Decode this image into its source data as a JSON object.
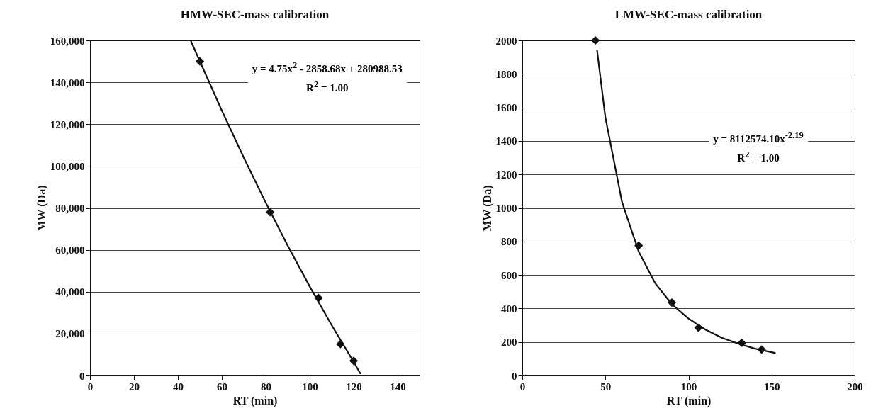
{
  "chart_data": [
    {
      "type": "scatter",
      "title": "HMW-SEC-mass calibration",
      "xlabel": "RT (min)",
      "ylabel": "MW (Da)",
      "xlim": [
        0,
        150
      ],
      "xticks": [
        0,
        20,
        40,
        60,
        80,
        100,
        120,
        140
      ],
      "ylim": [
        0,
        160000
      ],
      "yticks": [
        {
          "value": 0,
          "label": "0"
        },
        {
          "value": 20000,
          "label": "20,000"
        },
        {
          "value": 40000,
          "label": "40,000"
        },
        {
          "value": 60000,
          "label": "60,000"
        },
        {
          "value": 80000,
          "label": "80,000"
        },
        {
          "value": 100000,
          "label": "100,000"
        },
        {
          "value": 120000,
          "label": "120,000"
        },
        {
          "value": 140000,
          "label": "140,000"
        },
        {
          "value": 160000,
          "label": "160,000"
        }
      ],
      "grid": "y",
      "annotations": [
        "y = 4.75x$^{2}$ - 2858.68x + 280988.53",
        "R$^{2}$ = 1.00"
      ],
      "series": [
        {
          "marker": "diamond",
          "color": "#111111",
          "x": [
            50,
            82,
            104,
            114,
            120
          ],
          "values": [
            150000,
            78000,
            37000,
            15000,
            7000
          ]
        },
        {
          "type": "line",
          "marker": "none",
          "line_style": "solid",
          "color": "#111111",
          "x": [
            46,
            50,
            60,
            70,
            80,
            90,
            100,
            110,
            120,
            123
          ],
          "values": [
            159500,
            150000,
            126500,
            104000,
            82500,
            62000,
            42500,
            24000,
            6500,
            1000
          ]
        }
      ]
    },
    {
      "type": "scatter",
      "title": "LMW-SEC-mass calibration",
      "xlabel": "RT (min)",
      "ylabel": "MW (Da)",
      "xlim": [
        0,
        200
      ],
      "xticks": [
        0,
        50,
        100,
        150,
        200
      ],
      "ylim": [
        0,
        2000
      ],
      "yticks": [
        0,
        200,
        400,
        600,
        800,
        1000,
        1200,
        1400,
        1600,
        1800,
        2000
      ],
      "grid": "y",
      "annotations": [
        "y = 8112574.10x$^{-2.19}$",
        "R$^{2}$ = 1.00"
      ],
      "series": [
        {
          "marker": "diamond",
          "color": "#111111",
          "x": [
            44,
            70,
            90,
            106,
            132,
            144
          ],
          "values": [
            2000,
            775,
            435,
            285,
            195,
            155
          ]
        },
        {
          "type": "line",
          "marker": "none",
          "line_style": "solid",
          "color": "#111111",
          "x": [
            45,
            50,
            60,
            70,
            80,
            90,
            100,
            110,
            120,
            130,
            140,
            152
          ],
          "values": [
            1940,
            1540,
            1035,
            740,
            550,
            425,
            340,
            275,
            225,
            190,
            160,
            135
          ]
        }
      ]
    }
  ]
}
